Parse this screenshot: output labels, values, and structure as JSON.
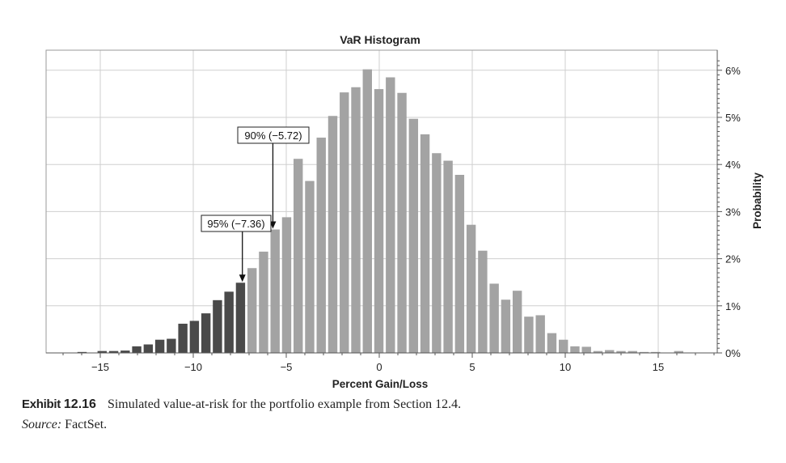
{
  "chart_data": {
    "type": "bar",
    "title": "VaR Histogram",
    "xlabel": "Percent Gain/Loss",
    "ylabel": "Probability",
    "xlim": [
      -18.5,
      18.5
    ],
    "ylim": [
      0,
      6.2
    ],
    "x_ticks": [
      -15,
      -10,
      -5,
      0,
      5,
      10,
      15
    ],
    "x_tick_labels": [
      "−15",
      "−10",
      "−5",
      "0",
      "5",
      "10",
      "15"
    ],
    "y_ticks": [
      0,
      1,
      2,
      3,
      4,
      5,
      6
    ],
    "y_tick_labels": [
      "0%",
      "1%",
      "2%",
      "3%",
      "4%",
      "5%",
      "6%"
    ],
    "y_axis_side": "right",
    "grid": true,
    "bin_width": 0.62,
    "bar_centers": [
      -15.98,
      -14.9,
      -14.28,
      -13.66,
      -13.04,
      -12.42,
      -11.8,
      -11.18,
      -10.56,
      -9.94,
      -9.32,
      -8.7,
      -8.08,
      -7.46,
      -6.84,
      -6.22,
      -5.6,
      -4.98,
      -4.36,
      -3.74,
      -3.12,
      -2.5,
      -1.88,
      -1.26,
      -0.64,
      -0.02,
      0.6,
      1.22,
      1.84,
      2.46,
      3.08,
      3.7,
      4.32,
      4.94,
      5.56,
      6.18,
      6.8,
      7.42,
      8.04,
      8.66,
      9.28,
      9.9,
      10.52,
      11.14,
      11.76,
      12.38,
      13.0,
      13.62,
      14.24,
      14.86,
      16.1
    ],
    "values": [
      0.02,
      0.04,
      0.04,
      0.05,
      0.14,
      0.18,
      0.28,
      0.3,
      0.62,
      0.68,
      0.84,
      1.12,
      1.3,
      1.49,
      1.8,
      2.15,
      2.62,
      2.88,
      4.12,
      3.65,
      4.57,
      5.03,
      5.53,
      5.64,
      6.02,
      5.6,
      5.85,
      5.52,
      4.97,
      4.64,
      4.24,
      4.08,
      3.78,
      2.72,
      2.17,
      1.47,
      1.13,
      1.32,
      0.77,
      0.8,
      0.42,
      0.28,
      0.14,
      0.13,
      0.04,
      0.06,
      0.04,
      0.04,
      0.02,
      0.02,
      0.04
    ],
    "tail_threshold": -7.36,
    "colors": {
      "tail_bar": "#4a4a4a",
      "body_bar": "#a3a3a3",
      "grid": "#cfcfcf",
      "axis": "#555555",
      "text": "#222222"
    },
    "annotations": [
      {
        "label": "90% (−5.72)",
        "x": -5.72,
        "y_anchor": 2.62
      },
      {
        "label": "95% (−7.36)",
        "x": -7.36,
        "y_anchor": 1.49
      }
    ]
  },
  "caption": {
    "exhibit_label": "Exhibit",
    "exhibit_number": "12.16",
    "text": "Simulated value-at-risk for the portfolio example from Section 12.4.",
    "source_label": "Source:",
    "source_text": "FactSet."
  }
}
